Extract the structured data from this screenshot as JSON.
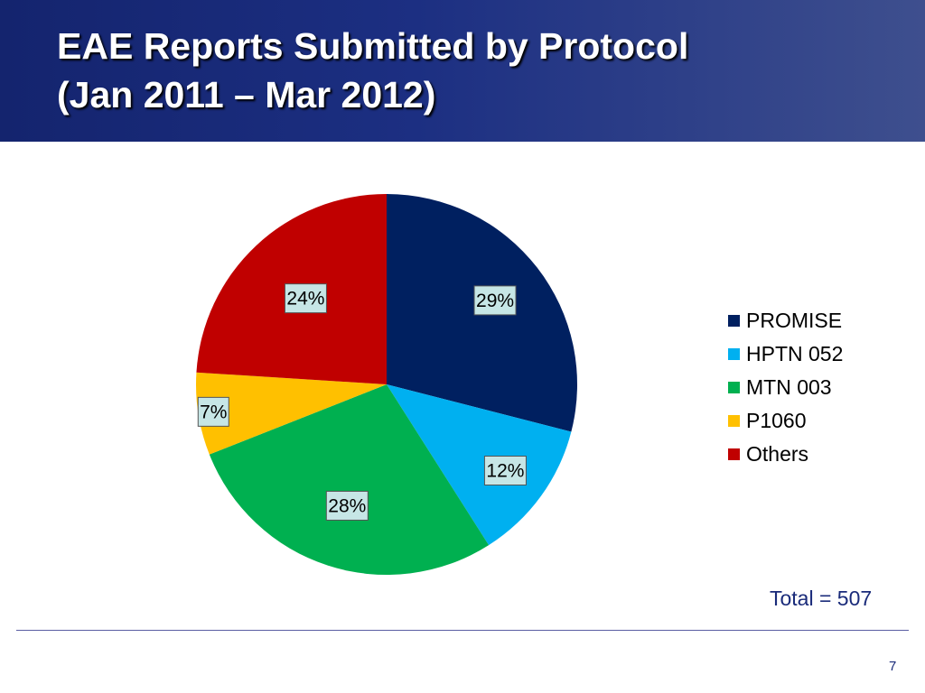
{
  "slide": {
    "title_line1": "EAE Reports Submitted by Protocol",
    "title_line2": "(Jan 2011 – Mar 2012)",
    "total": "Total = 507",
    "page_number": "7"
  },
  "chart_data": {
    "type": "pie",
    "title": "",
    "categories": [
      "PROMISE",
      "HPTN 052",
      "MTN 003",
      "P1060",
      "Others"
    ],
    "values": [
      29,
      12,
      28,
      7,
      24
    ],
    "labels": [
      "29%",
      "12%",
      "28%",
      "7%",
      "24%"
    ],
    "colors": [
      "#002060",
      "#00b0f0",
      "#00b050",
      "#ffc000",
      "#c00000"
    ],
    "start_angle": "12 o'clock",
    "direction": "clockwise",
    "legend_position": "right",
    "data_labels": "boxed percentages"
  }
}
